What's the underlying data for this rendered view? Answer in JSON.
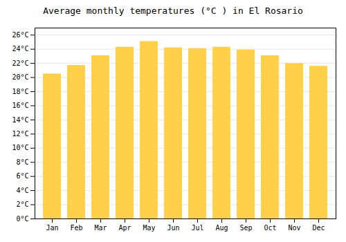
{
  "chart_data": {
    "type": "bar",
    "title": "Average monthly temperatures (°C ) in El Rosario",
    "categories": [
      "Jan",
      "Feb",
      "Mar",
      "Apr",
      "May",
      "Jun",
      "Jul",
      "Aug",
      "Sep",
      "Oct",
      "Nov",
      "Dec"
    ],
    "values": [
      20.5,
      21.7,
      23.1,
      24.3,
      25.1,
      24.2,
      24.1,
      24.3,
      23.9,
      23.1,
      22.0,
      21.6
    ],
    "color": "#FFD04A",
    "ylim": [
      0,
      27
    ],
    "yticks": [
      {
        "value": 0,
        "label": "0°C"
      },
      {
        "value": 2,
        "label": "2°C"
      },
      {
        "value": 4,
        "label": "4°C"
      },
      {
        "value": 6,
        "label": "6°C"
      },
      {
        "value": 8,
        "label": "8°C"
      },
      {
        "value": 10,
        "label": "10°C"
      },
      {
        "value": 12,
        "label": "12°C"
      },
      {
        "value": 14,
        "label": "14°C"
      },
      {
        "value": 16,
        "label": "16°C"
      },
      {
        "value": 18,
        "label": "18°C"
      },
      {
        "value": 20,
        "label": "20°C"
      },
      {
        "value": 22,
        "label": "22°C"
      },
      {
        "value": 24,
        "label": "24°C"
      },
      {
        "value": 26,
        "label": "26°C"
      }
    ],
    "grid": true
  }
}
